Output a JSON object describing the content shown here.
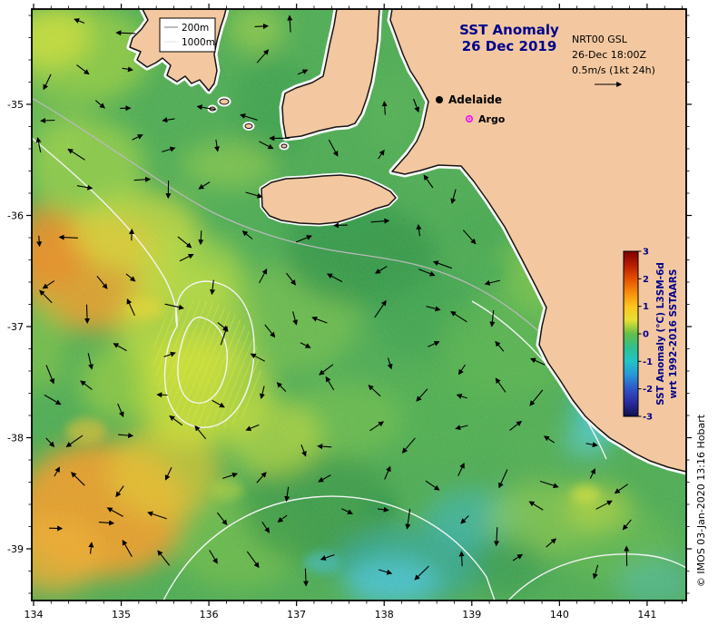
{
  "header": {
    "title_line1": "SST Anomaly",
    "title_line2": "26 Dec 2019",
    "product_line1": "NRT00 GSL",
    "product_line2": "26-Dec 18:00Z",
    "product_line3": "0.5m/s (1kt 24h)"
  },
  "legend": {
    "items": [
      {
        "label": "200m",
        "line_color": "#b5b5b5"
      },
      {
        "label": "1000m",
        "line_color": "#efefef"
      }
    ]
  },
  "markers": {
    "adelaide_label": "Adelaide",
    "argo_label": "Argo",
    "argo_color": "#ff00ff"
  },
  "axes": {
    "x_ticks": [
      "134",
      "135",
      "136",
      "137",
      "138",
      "139",
      "140",
      "141"
    ],
    "y_ticks": [
      "-35",
      "-36",
      "-37",
      "-38",
      "-39"
    ]
  },
  "colorbar": {
    "ticks": [
      "3",
      "2",
      "1",
      "0",
      "-1",
      "-2",
      "-3"
    ],
    "label_line1": "SST Anomaly (°C) L3SM-6d",
    "label_line2": "wrt 1992-2016 SSTAARS",
    "colors_top_to_bottom": [
      "#7e0000",
      "#b81c00",
      "#e55000",
      "#f88c0a",
      "#fdc41e",
      "#e8e034",
      "#64bf48",
      "#2fbf8e",
      "#22c4c8",
      "#2796d8",
      "#2f55c8",
      "#2a2a9e",
      "#10104e"
    ]
  },
  "credit": "© IMOS 03-Jan-2020 13:16 Hobart",
  "palette": {
    "land": "#f3c8a0",
    "ocean_base": "#4fae54",
    "title_navy": "#00008c"
  }
}
